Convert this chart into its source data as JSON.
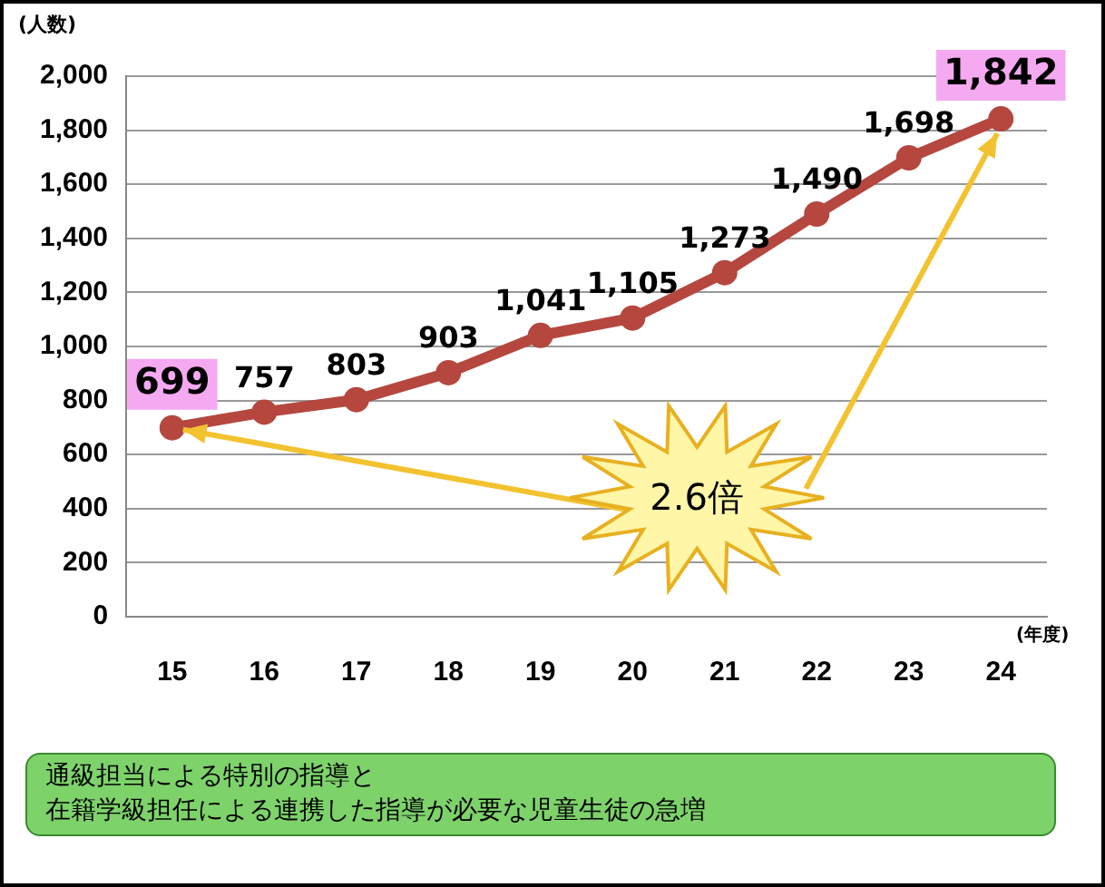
{
  "chart_data": {
    "type": "line",
    "ylabel": "(人数)",
    "xlabel": "(年度)",
    "categories": [
      "15",
      "16",
      "17",
      "18",
      "19",
      "20",
      "21",
      "22",
      "23",
      "24"
    ],
    "series": [
      {
        "color": "#b5473f",
        "values": [
          699,
          757,
          803,
          903,
          1041,
          1105,
          1273,
          1490,
          1698,
          1842
        ],
        "value_labels": [
          "699",
          "757",
          "803",
          "903",
          "1,041",
          "1,105",
          "1,273",
          "1,490",
          "1,698",
          "1,842"
        ]
      }
    ],
    "ylim": [
      0,
      2000
    ],
    "yticks": [
      0,
      200,
      400,
      600,
      800,
      {
        "value": 1000,
        "label": "1,000"
      },
      {
        "value": 1200,
        "label": "1,200"
      },
      {
        "value": 1400,
        "label": "1,400"
      },
      {
        "value": 1600,
        "label": "1,600"
      },
      {
        "value": 1800,
        "label": "1,800"
      },
      {
        "value": 2000,
        "label": "2,000"
      }
    ],
    "grid": "y",
    "marker": "circle",
    "line_style": "solid",
    "legend": false,
    "annotations": [
      "2.6倍",
      "通級担当による特別の指導と",
      "在籍学級担任による連携した指導が必要な児童生徒の急増"
    ]
  }
}
